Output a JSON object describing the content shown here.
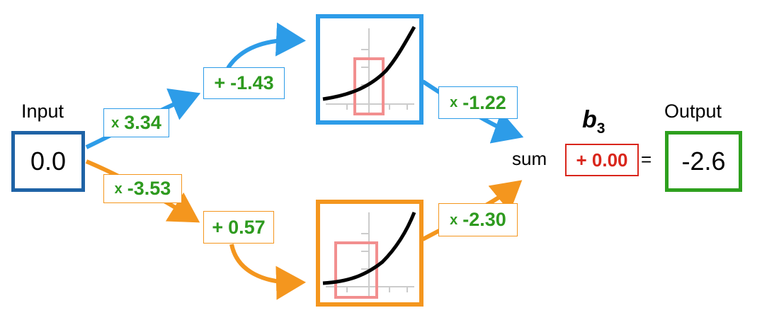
{
  "input": {
    "label": "Input",
    "value": "0.0"
  },
  "output": {
    "label": "Output",
    "value": "-2.6"
  },
  "weights": {
    "top_input": {
      "op": "x",
      "value": "3.34"
    },
    "bottom_input": {
      "op": "x",
      "value": "-3.53"
    },
    "top_output": {
      "op": "x",
      "value": "-1.22"
    },
    "bottom_output": {
      "op": "x",
      "value": "-2.30"
    }
  },
  "biases": {
    "top": {
      "op": "+",
      "value": "-1.43"
    },
    "bottom": {
      "op": "+",
      "value": "0.57"
    },
    "final": {
      "text": "+ 0.00",
      "symbol": "b",
      "subscript": "3"
    }
  },
  "sum_label": "sum",
  "equals": "=",
  "colors": {
    "input_box": "#1f63a6",
    "output_box": "#2ea01e",
    "top_path": "#2d9ce8",
    "bottom_path": "#f4961e",
    "weight_text": "#2e9a1f",
    "bias_final": "#d9261c",
    "highlight": "#f28f8f"
  }
}
